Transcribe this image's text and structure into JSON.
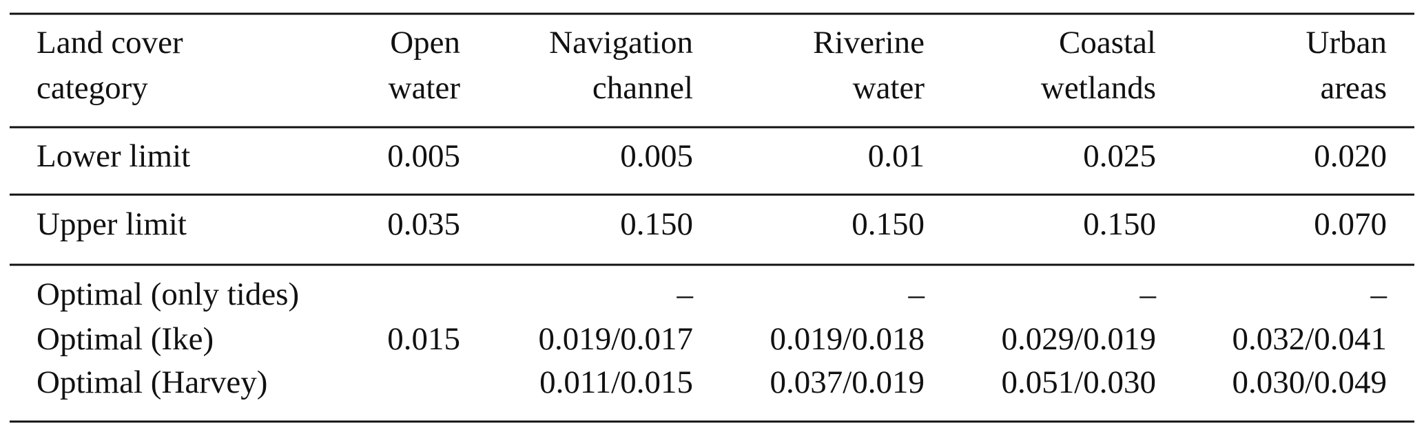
{
  "table": {
    "header": [
      [
        "Land cover",
        "category"
      ],
      [
        "Open",
        "water"
      ],
      [
        "Navigation",
        "channel"
      ],
      [
        "Riverine",
        "water"
      ],
      [
        "Coastal",
        "wetlands"
      ],
      [
        "Urban",
        "areas"
      ]
    ],
    "rows": [
      [
        "Lower limit",
        "0.005",
        "0.005",
        "0.01",
        "0.025",
        "0.020"
      ],
      [
        "Upper limit",
        "0.035",
        "0.150",
        "0.150",
        "0.150",
        "0.070"
      ]
    ],
    "optimal": {
      "labels": [
        "Optimal (only tides)",
        "Optimal (Ike)",
        "Optimal (Harvey)"
      ],
      "open_water": "0.015",
      "values": [
        [
          "–",
          "–",
          "–",
          "–"
        ],
        [
          "0.019/0.017",
          "0.019/0.018",
          "0.029/0.019",
          "0.032/0.041"
        ],
        [
          "0.011/0.015",
          "0.037/0.019",
          "0.051/0.030",
          "0.030/0.049"
        ]
      ]
    }
  }
}
